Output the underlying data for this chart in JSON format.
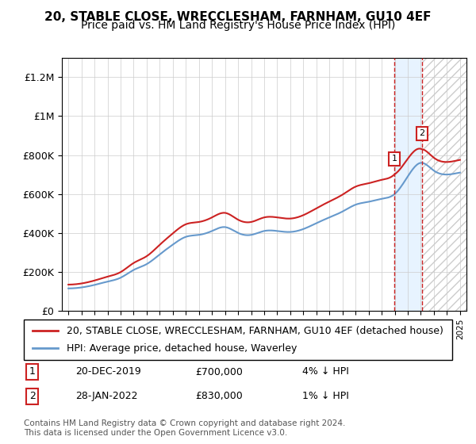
{
  "title": "20, STABLE CLOSE, WRECCLESHAM, FARNHAM, GU10 4EF",
  "subtitle": "Price paid vs. HM Land Registry's House Price Index (HPI)",
  "ylabel": "",
  "xlabel": "",
  "ylim": [
    0,
    1300000
  ],
  "yticks": [
    0,
    200000,
    400000,
    600000,
    800000,
    1000000,
    1200000
  ],
  "ytick_labels": [
    "£0",
    "£200K",
    "£400K",
    "£600K",
    "£800K",
    "£1M",
    "£1.2M"
  ],
  "background_color": "#ffffff",
  "plot_bg_color": "#ffffff",
  "grid_color": "#cccccc",
  "sale1_date": 2019.97,
  "sale1_price": 700000,
  "sale1_label": "1",
  "sale2_date": 2022.08,
  "sale2_price": 830000,
  "sale2_label": "2",
  "hpi_line_color": "#6699cc",
  "price_line_color": "#cc2222",
  "shade_color": "#ddeeff",
  "vline_color": "#cc2222",
  "hatch_color": "#cccccc",
  "legend_entries": [
    "20, STABLE CLOSE, WRECCLESHAM, FARNHAM, GU10 4EF (detached house)",
    "HPI: Average price, detached house, Waverley"
  ],
  "table_rows": [
    {
      "num": "1",
      "date": "20-DEC-2019",
      "price": "£700,000",
      "hpi": "4% ↓ HPI"
    },
    {
      "num": "2",
      "date": "28-JAN-2022",
      "price": "£830,000",
      "hpi": "1% ↓ HPI"
    }
  ],
  "footnote": "Contains HM Land Registry data © Crown copyright and database right 2024.\nThis data is licensed under the Open Government Licence v3.0.",
  "title_fontsize": 11,
  "subtitle_fontsize": 10,
  "tick_fontsize": 9,
  "legend_fontsize": 9,
  "table_fontsize": 9
}
